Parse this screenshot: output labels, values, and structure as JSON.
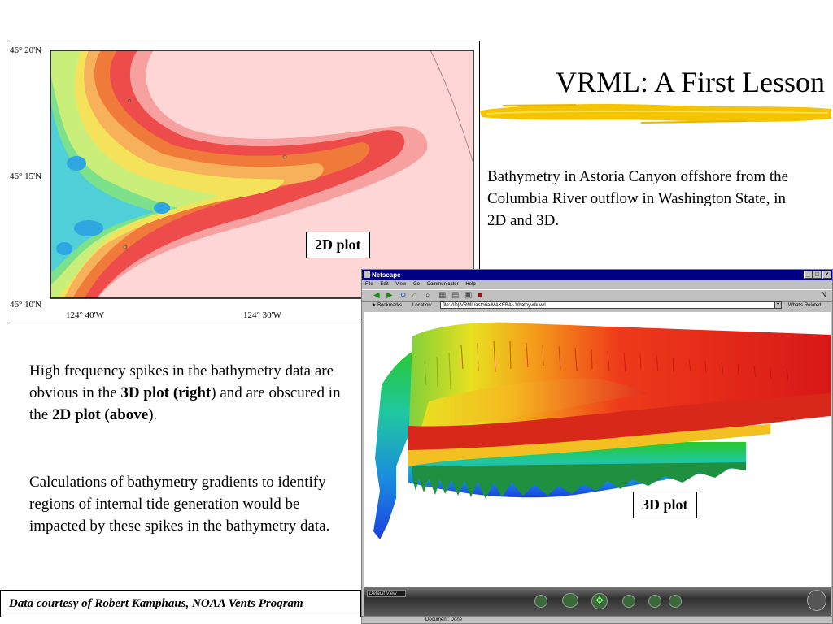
{
  "slide": {
    "title": "VRML:  A First Lesson",
    "description": "Bathymetry in Astoria Canyon offshore from the Columbia River outflow in Washington State, in 2D and 3D.",
    "para1": {
      "t1": "High frequency spikes in the bathymetry data are obvious in the ",
      "b1": "3D plot (right",
      "t2": ") and are obscured in the ",
      "b2": "2D plot (above",
      "t3": ")."
    },
    "para2": "Calculations of  bathymetry gradients to identify regions of internal tide generation would be impacted by these spikes in the bathymetry data.",
    "credit": "Data courtesy of Robert Kamphaus, NOAA Vents Program"
  },
  "map2d": {
    "label": "2D plot",
    "lat_labels": [
      "46° 20'N",
      "46° 15'N",
      "46° 10'N"
    ],
    "lon_labels": [
      "124° 40'W",
      "124° 30'W"
    ]
  },
  "browser": {
    "title": "Netscape",
    "menu": [
      "File",
      "Edit",
      "View",
      "Go",
      "Communicator",
      "Help"
    ],
    "bookmarks": "Bookmarks",
    "location_label": "Location:",
    "url": "file:///D|/VRML/astoria/MAKEBA~1/bathyvrlk.wrl",
    "whats_related": "What's Related",
    "viewpoint": "Default View",
    "status": "Document: Done",
    "plot_label": "3D plot"
  },
  "colors": {
    "title_brush": "#f5c400",
    "titlebar": "#000080",
    "deep": "#1f3fd6",
    "shallow": "#e02020"
  }
}
